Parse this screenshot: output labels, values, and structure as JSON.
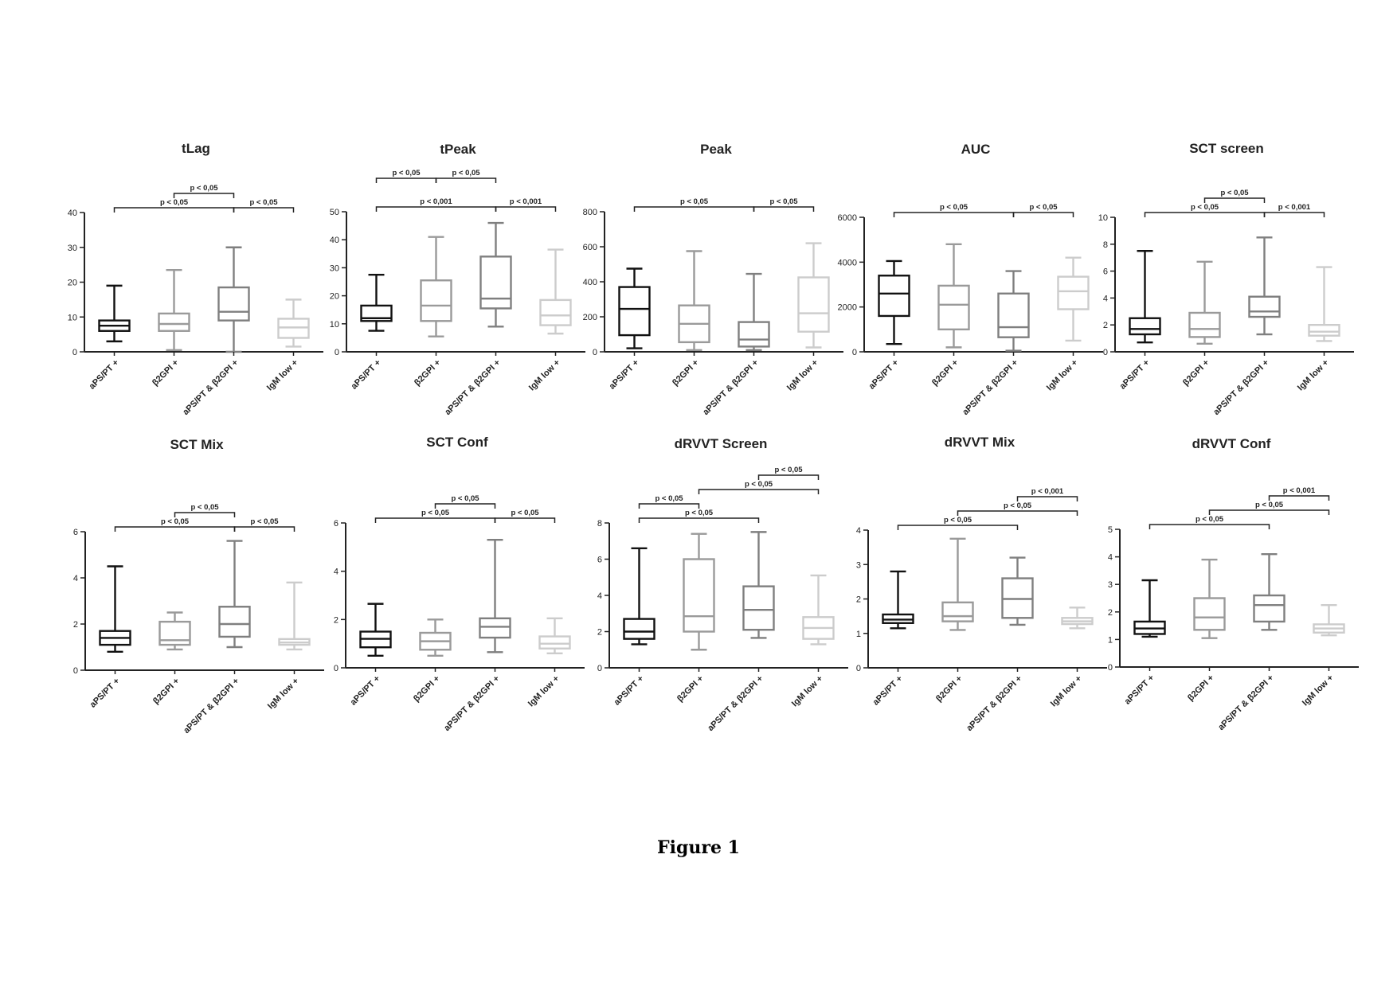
{
  "figure_caption": "Figure 1",
  "group_labels": [
    "aPS/PT +",
    "β2GPI +",
    "aPS/PT & β2GPI +",
    "IgM low +"
  ],
  "colors": {
    "aPS/PT +": "#111111",
    "β2GPI +": "#9a9a9a",
    "aPS/PT & β2GPI +": "#7f7f7f",
    "IgM low +": "#cccccc"
  },
  "chart_data": [
    {
      "type": "box",
      "title": "tLag",
      "ylim": [
        0,
        40
      ],
      "yticks": [
        0,
        10,
        20,
        30,
        40
      ],
      "categories": [
        "aPS/PT +",
        "β2GPI +",
        "aPS/PT & β2GPI +",
        "IgM low +"
      ],
      "boxes": [
        {
          "min": 3,
          "q1": 6,
          "median": 7.5,
          "q3": 9,
          "max": 19
        },
        {
          "min": 0.5,
          "q1": 6,
          "median": 8,
          "q3": 11,
          "max": 23.5
        },
        {
          "min": 0,
          "q1": 9,
          "median": 11.5,
          "q3": 18.5,
          "max": 30
        },
        {
          "min": 1.5,
          "q1": 4,
          "median": 7,
          "q3": 9.5,
          "max": 15
        }
      ],
      "comparisons": [
        {
          "from": 0,
          "to": 2,
          "label": "p < 0,05",
          "level": 1
        },
        {
          "from": 1,
          "to": 2,
          "label": "p < 0,05",
          "level": 2
        },
        {
          "from": 2,
          "to": 3,
          "label": "p < 0,05",
          "level": 1
        }
      ]
    },
    {
      "type": "box",
      "title": "tPeak",
      "ylim": [
        0,
        50
      ],
      "yticks": [
        0,
        10,
        20,
        30,
        40,
        50
      ],
      "categories": [
        "aPS/PT +",
        "β2GPI +",
        "aPS/PT & β2GPI +",
        "IgM low +"
      ],
      "boxes": [
        {
          "min": 7.5,
          "q1": 11,
          "median": 12,
          "q3": 16.5,
          "max": 27.5
        },
        {
          "min": 5.5,
          "q1": 11,
          "median": 16.5,
          "q3": 25.5,
          "max": 41
        },
        {
          "min": 9,
          "q1": 15.5,
          "median": 19,
          "q3": 34,
          "max": 46
        },
        {
          "min": 6.5,
          "q1": 9.5,
          "median": 13,
          "q3": 18.5,
          "max": 36.5
        }
      ],
      "comparisons": [
        {
          "from": 0,
          "to": 1,
          "label": "p < 0,05",
          "level": 3
        },
        {
          "from": 1,
          "to": 2,
          "label": "p < 0,05",
          "level": 3
        },
        {
          "from": 0,
          "to": 2,
          "label": "p < 0,001",
          "level": 1
        },
        {
          "from": 2,
          "to": 3,
          "label": "p < 0,001",
          "level": 1
        }
      ]
    },
    {
      "type": "box",
      "title": "Peak",
      "ylim": [
        0,
        800
      ],
      "yticks": [
        0,
        200,
        400,
        600,
        800
      ],
      "categories": [
        "aPS/PT +",
        "β2GPI +",
        "aPS/PT & β2GPI +",
        "IgM low +"
      ],
      "boxes": [
        {
          "min": 20,
          "q1": 95,
          "median": 245,
          "q3": 370,
          "max": 475
        },
        {
          "min": 10,
          "q1": 55,
          "median": 160,
          "q3": 265,
          "max": 575
        },
        {
          "min": 10,
          "q1": 30,
          "median": 70,
          "q3": 170,
          "max": 445
        },
        {
          "min": 25,
          "q1": 115,
          "median": 220,
          "q3": 425,
          "max": 620
        }
      ],
      "comparisons": [
        {
          "from": 0,
          "to": 2,
          "label": "p < 0,05",
          "level": 1
        },
        {
          "from": 2,
          "to": 3,
          "label": "p < 0,05",
          "level": 1
        }
      ]
    },
    {
      "type": "box",
      "title": "AUC",
      "ylim": [
        0,
        6000
      ],
      "yticks": [
        0,
        2000,
        4000,
        6000
      ],
      "categories": [
        "aPS/PT +",
        "β2GPI +",
        "aPS/PT & β2GPI +",
        "IgM low +"
      ],
      "boxes": [
        {
          "min": 350,
          "q1": 1600,
          "median": 2600,
          "q3": 3400,
          "max": 4050
        },
        {
          "min": 200,
          "q1": 1000,
          "median": 2100,
          "q3": 2950,
          "max": 4800
        },
        {
          "min": 50,
          "q1": 650,
          "median": 1100,
          "q3": 2600,
          "max": 3600
        },
        {
          "min": 500,
          "q1": 1900,
          "median": 2700,
          "q3": 3350,
          "max": 4200
        }
      ],
      "comparisons": [
        {
          "from": 0,
          "to": 2,
          "label": "p < 0,05",
          "level": 1
        },
        {
          "from": 2,
          "to": 3,
          "label": "p < 0,05",
          "level": 1
        }
      ]
    },
    {
      "type": "box",
      "title": "SCT screen",
      "ylim": [
        0,
        10
      ],
      "yticks": [
        0,
        2,
        4,
        6,
        8,
        10
      ],
      "categories": [
        "aPS/PT +",
        "β2GPI +",
        "aPS/PT & β2GPI +",
        "IgM low +"
      ],
      "boxes": [
        {
          "min": 0.7,
          "q1": 1.3,
          "median": 1.7,
          "q3": 2.5,
          "max": 7.5
        },
        {
          "min": 0.6,
          "q1": 1.1,
          "median": 1.7,
          "q3": 2.9,
          "max": 6.7
        },
        {
          "min": 1.3,
          "q1": 2.6,
          "median": 3.0,
          "q3": 4.1,
          "max": 8.5
        },
        {
          "min": 0.8,
          "q1": 1.2,
          "median": 1.5,
          "q3": 2.0,
          "max": 6.3
        }
      ],
      "comparisons": [
        {
          "from": 0,
          "to": 2,
          "label": "p < 0,05",
          "level": 1
        },
        {
          "from": 1,
          "to": 2,
          "label": "p < 0,05",
          "level": 2
        },
        {
          "from": 2,
          "to": 3,
          "label": "p < 0,001",
          "level": 1
        }
      ]
    },
    {
      "type": "box",
      "title": "SCT Mix",
      "ylim": [
        0,
        6
      ],
      "yticks": [
        0,
        2,
        4,
        6
      ],
      "categories": [
        "aPS/PT +",
        "β2GPI +",
        "aPS/PT & β2GPI +",
        "IgM low +"
      ],
      "boxes": [
        {
          "min": 0.8,
          "q1": 1.1,
          "median": 1.4,
          "q3": 1.7,
          "max": 4.5
        },
        {
          "min": 0.9,
          "q1": 1.1,
          "median": 1.3,
          "q3": 2.1,
          "max": 2.5
        },
        {
          "min": 1.0,
          "q1": 1.45,
          "median": 2.0,
          "q3": 2.75,
          "max": 5.6
        },
        {
          "min": 0.9,
          "q1": 1.1,
          "median": 1.2,
          "q3": 1.35,
          "max": 3.8
        }
      ],
      "comparisons": [
        {
          "from": 0,
          "to": 2,
          "label": "p < 0,05",
          "level": 1
        },
        {
          "from": 1,
          "to": 2,
          "label": "p < 0,05",
          "level": 2
        },
        {
          "from": 2,
          "to": 3,
          "label": "p < 0,05",
          "level": 1
        }
      ]
    },
    {
      "type": "box",
      "title": "SCT Conf",
      "ylim": [
        0,
        6
      ],
      "yticks": [
        0,
        2,
        4,
        6
      ],
      "categories": [
        "aPS/PT +",
        "β2GPI +",
        "aPS/PT & β2GPI +",
        "IgM low +"
      ],
      "boxes": [
        {
          "min": 0.5,
          "q1": 0.85,
          "median": 1.2,
          "q3": 1.5,
          "max": 2.65
        },
        {
          "min": 0.5,
          "q1": 0.75,
          "median": 1.1,
          "q3": 1.45,
          "max": 2.0
        },
        {
          "min": 0.65,
          "q1": 1.25,
          "median": 1.7,
          "q3": 2.05,
          "max": 5.3
        },
        {
          "min": 0.6,
          "q1": 0.8,
          "median": 1.0,
          "q3": 1.3,
          "max": 2.05
        }
      ],
      "comparisons": [
        {
          "from": 0,
          "to": 2,
          "label": "p < 0,05",
          "level": 1
        },
        {
          "from": 1,
          "to": 2,
          "label": "p < 0,05",
          "level": 2
        },
        {
          "from": 2,
          "to": 3,
          "label": "p < 0,05",
          "level": 1
        }
      ]
    },
    {
      "type": "box",
      "title": "dRVVT Screen",
      "ylim": [
        0,
        8
      ],
      "yticks": [
        0,
        2,
        4,
        6,
        8
      ],
      "categories": [
        "aPS/PT +",
        "β2GPI +",
        "aPS/PT & β2GPI +",
        "IgM low +"
      ],
      "boxes": [
        {
          "min": 1.3,
          "q1": 1.6,
          "median": 2.0,
          "q3": 2.7,
          "max": 6.6
        },
        {
          "min": 1.0,
          "q1": 2.0,
          "median": 2.85,
          "q3": 6.0,
          "max": 7.4
        },
        {
          "min": 1.65,
          "q1": 2.1,
          "median": 3.2,
          "q3": 4.5,
          "max": 7.5
        },
        {
          "min": 1.3,
          "q1": 1.6,
          "median": 2.2,
          "q3": 2.8,
          "max": 5.1
        }
      ],
      "comparisons": [
        {
          "from": 0,
          "to": 2,
          "label": "p < 0,05",
          "level": 1
        },
        {
          "from": 0,
          "to": 1,
          "label": "p < 0,05",
          "level": 2
        },
        {
          "from": 1,
          "to": 3,
          "label": "p < 0,05",
          "level": 3
        },
        {
          "from": 2,
          "to": 3,
          "label": "p < 0,05",
          "level": 4
        }
      ]
    },
    {
      "type": "box",
      "title": "dRVVT Mix",
      "ylim": [
        0,
        4
      ],
      "yticks": [
        0,
        1,
        2,
        3,
        4
      ],
      "categories": [
        "aPS/PT +",
        "β2GPI +",
        "aPS/PT & β2GPI +",
        "IgM low +"
      ],
      "boxes": [
        {
          "min": 1.15,
          "q1": 1.3,
          "median": 1.4,
          "q3": 1.55,
          "max": 2.8
        },
        {
          "min": 1.1,
          "q1": 1.35,
          "median": 1.5,
          "q3": 1.9,
          "max": 3.75
        },
        {
          "min": 1.25,
          "q1": 1.45,
          "median": 2.0,
          "q3": 2.6,
          "max": 3.2
        },
        {
          "min": 1.15,
          "q1": 1.27,
          "median": 1.35,
          "q3": 1.45,
          "max": 1.75
        }
      ],
      "comparisons": [
        {
          "from": 0,
          "to": 2,
          "label": "p < 0,05",
          "level": 1
        },
        {
          "from": 1,
          "to": 3,
          "label": "p < 0,05",
          "level": 2
        },
        {
          "from": 2,
          "to": 3,
          "label": "p < 0,001",
          "level": 3
        }
      ]
    },
    {
      "type": "box",
      "title": "dRVVT Conf",
      "ylim": [
        0,
        5
      ],
      "yticks": [
        0,
        1,
        2,
        3,
        4,
        5
      ],
      "categories": [
        "aPS/PT +",
        "β2GPI +",
        "aPS/PT & β2GPI +",
        "IgM low +"
      ],
      "boxes": [
        {
          "min": 1.1,
          "q1": 1.2,
          "median": 1.4,
          "q3": 1.65,
          "max": 3.15
        },
        {
          "min": 1.05,
          "q1": 1.35,
          "median": 1.8,
          "q3": 2.5,
          "max": 3.9
        },
        {
          "min": 1.35,
          "q1": 1.65,
          "median": 2.25,
          "q3": 2.6,
          "max": 4.1
        },
        {
          "min": 1.15,
          "q1": 1.25,
          "median": 1.4,
          "q3": 1.55,
          "max": 2.25
        }
      ],
      "comparisons": [
        {
          "from": 0,
          "to": 2,
          "label": "p < 0,05",
          "level": 1
        },
        {
          "from": 1,
          "to": 3,
          "label": "p < 0,05",
          "level": 2
        },
        {
          "from": 2,
          "to": 3,
          "label": "p < 0,001",
          "level": 3
        }
      ]
    }
  ]
}
